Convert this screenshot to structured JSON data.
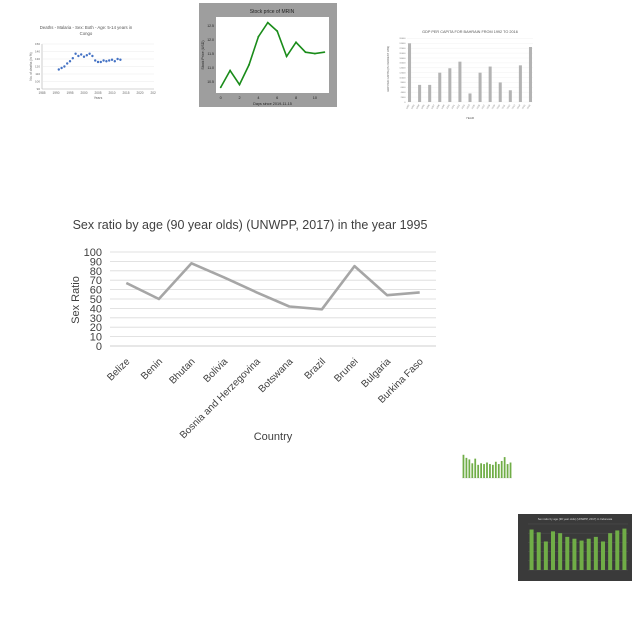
{
  "chart_data": [
    {
      "type": "line",
      "title": "Sex ratio by age (90 year olds) (UNWPP, 2017) in the year 1995",
      "xlabel": "Country",
      "ylabel": "Sex Ratio",
      "categories": [
        "Belize",
        "Benin",
        "Bhutan",
        "Bolivia",
        "Bosnia and Herzegovina",
        "Botswana",
        "Brazil",
        "Brunei",
        "Bulgaria",
        "Burkina Faso"
      ],
      "series": [
        {
          "values": [
            67,
            50,
            88,
            73,
            57,
            42,
            39,
            85,
            54,
            57
          ]
        }
      ],
      "ylim": [
        0,
        100
      ],
      "yticks": [
        "0",
        "10",
        "20",
        "30",
        "40",
        "50",
        "60",
        "70",
        "80",
        "90",
        "100"
      ],
      "grid": true,
      "color": "#a6a6a6"
    },
    {
      "type": "scatter",
      "title": "Deaths - Malaria - Sex: Both - Age: 5-14 years in Congo",
      "xlabel": "Years",
      "ylabel": "No. of deaths (in %)",
      "x": [
        1991,
        1992,
        1993,
        1994,
        1995,
        1996,
        1997,
        1998,
        1999,
        2000,
        2001,
        2002,
        2003,
        2004,
        2005,
        2006,
        2007,
        2008,
        2009,
        2010,
        2011,
        2012,
        2013
      ],
      "y": [
        116,
        118,
        120,
        124,
        127,
        131,
        137,
        134,
        136,
        133,
        135,
        137,
        134,
        128,
        126,
        126,
        128,
        127,
        128,
        129,
        127,
        130,
        129
      ],
      "xticks": [
        "1985",
        "1990",
        "1995",
        "2000",
        "2005",
        "2010",
        "2015",
        "2020",
        "2025"
      ],
      "xlim": [
        1985,
        2025
      ],
      "ylim": [
        90,
        150
      ],
      "color": "#4472c4"
    },
    {
      "type": "line",
      "title": "Stock price of MRIN",
      "xlabel": "Days since 2019-11-15",
      "ylabel": "Stock Price (USD)",
      "x": [
        0,
        1,
        2,
        3,
        4,
        5,
        6,
        7,
        8,
        9,
        10,
        11
      ],
      "y": [
        10.3,
        10.9,
        10.4,
        11.1,
        12.1,
        12.6,
        12.3,
        11.4,
        11.9,
        11.55,
        11.5,
        11.55
      ],
      "xticks": [
        "0",
        "2",
        "4",
        "6",
        "8",
        "10"
      ],
      "xlim": [
        -0.5,
        11.5
      ],
      "ylim": [
        10.1,
        12.8
      ],
      "color": "#1a8c1a"
    },
    {
      "type": "bar",
      "title": "GDP PER CAPITA FOR BAHRAIN FROM 1992 TO 2016",
      "xlabel": "YEAR",
      "ylabel": "GDP PER CAPITA (IN CURRENT US$)",
      "categories": [
        "1992",
        "1993",
        "1994",
        "1995",
        "1996",
        "1997",
        "1998",
        "1999",
        "2000",
        "2001",
        "2002",
        "2003",
        "2004",
        "2005",
        "2006",
        "2007",
        "2008",
        "2009",
        "2010",
        "2011",
        "2012",
        "2013",
        "2014",
        "2015",
        "2016"
      ],
      "values": [
        24000,
        0,
        7000,
        0,
        7000,
        0,
        12000,
        0,
        13800,
        0,
        16500,
        0,
        3500,
        0,
        12000,
        0,
        14500,
        0,
        8000,
        0,
        4800,
        0,
        15000,
        0,
        22500
      ],
      "ylim": [
        0,
        27000
      ],
      "color": "#b3b3b3"
    },
    {
      "type": "bar",
      "title": "",
      "values": [
        60,
        52,
        48,
        38,
        50,
        34,
        38,
        36,
        40,
        36,
        34,
        42,
        36,
        44,
        54,
        36,
        40
      ],
      "color": "#70ad47"
    },
    {
      "type": "bar",
      "title": "Sex ratio by age (90 year olds) (UNWPP, 2017) in Indonesia",
      "values": [
        88,
        82,
        62,
        84,
        80,
        72,
        68,
        64,
        68,
        72,
        62,
        80,
        86,
        90
      ],
      "ylim": [
        0,
        100
      ],
      "color": "#70ad47"
    }
  ]
}
